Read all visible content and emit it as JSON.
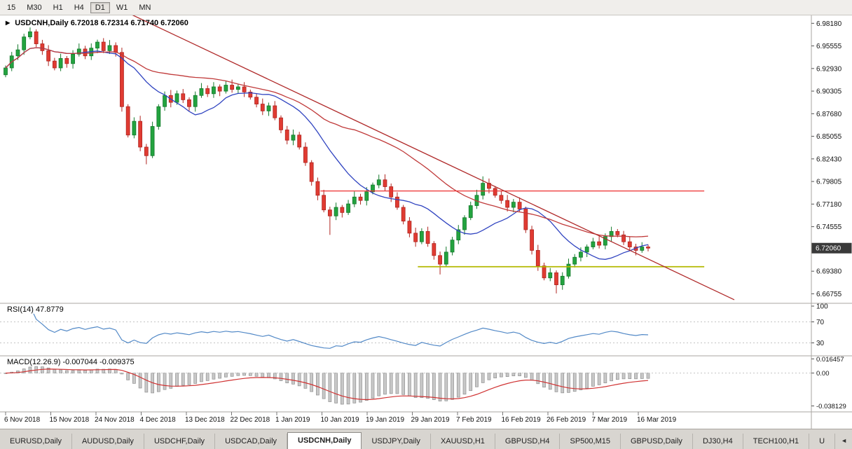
{
  "toolbar": {
    "timeframes": [
      {
        "label": "15",
        "active": false
      },
      {
        "label": "M30",
        "active": false
      },
      {
        "label": "H1",
        "active": false
      },
      {
        "label": "H4",
        "active": false
      },
      {
        "label": "D1",
        "active": true
      },
      {
        "label": "W1",
        "active": false
      },
      {
        "label": "MN",
        "active": false
      }
    ]
  },
  "chart": {
    "symbol_line": "USDCNH,Daily",
    "ohlc_line": "6.72018 6.72314 6.71740 6.72060"
  },
  "chart_data": {
    "type": "candlestick",
    "symbol": "USDCNH",
    "timeframe": "Daily",
    "open": 6.72018,
    "high": 6.72314,
    "low": 6.7174,
    "close": 6.7206,
    "price_max": 6.991,
    "price_min": 6.6565,
    "current_price": {
      "text": "6.72060",
      "value": 6.7206
    },
    "price_axis_labels": [
      "6.98180",
      "6.95555",
      "6.92930",
      "6.90305",
      "6.87680",
      "6.85055",
      "6.82430",
      "6.79805",
      "6.77180",
      "6.74555",
      "6.69380",
      "6.66755"
    ],
    "date_labels": [
      "6 Nov 2018",
      "15 Nov 2018",
      "24 Nov 2018",
      "4 Dec 2018",
      "13 Dec 2018",
      "22 Dec 2018",
      "1 Jan 2019",
      "10 Jan 2019",
      "19 Jan 2019",
      "29 Jan 2019",
      "7 Feb 2019",
      "16 Feb 2019",
      "26 Feb 2019",
      "7 Mar 2019",
      "16 Mar 2019"
    ],
    "closes": [
      6.93,
      6.944,
      6.951,
      6.966,
      6.972,
      6.958,
      6.95,
      6.938,
      6.93,
      6.941,
      6.935,
      6.946,
      6.952,
      6.944,
      6.953,
      6.96,
      6.95,
      6.956,
      6.948,
      6.885,
      6.852,
      6.868,
      6.838,
      6.828,
      6.862,
      6.885,
      6.898,
      6.89,
      6.9,
      6.893,
      6.885,
      6.898,
      6.906,
      6.9,
      6.908,
      6.903,
      6.91,
      6.905,
      6.908,
      6.902,
      6.896,
      6.888,
      6.88,
      6.886,
      6.872,
      6.858,
      6.846,
      6.852,
      6.838,
      6.82,
      6.798,
      6.782,
      6.765,
      6.758,
      6.768,
      6.762,
      6.772,
      6.78,
      6.776,
      6.786,
      6.794,
      6.8,
      6.792,
      6.78,
      6.768,
      6.752,
      6.738,
      6.728,
      6.74,
      6.726,
      6.712,
      6.702,
      6.716,
      6.73,
      6.742,
      6.756,
      6.77,
      6.782,
      6.796,
      6.79,
      6.782,
      6.776,
      6.768,
      6.774,
      6.766,
      6.742,
      6.718,
      6.7,
      6.686,
      6.692,
      6.678,
      6.688,
      6.702,
      6.71,
      6.716,
      6.722,
      6.728,
      6.724,
      6.734,
      6.74,
      6.736,
      6.728,
      6.722,
      6.718,
      6.722,
      6.7206
    ],
    "wick_high": {
      "4": 6.977,
      "61": 6.806,
      "78": 6.804
    },
    "wick_low": {
      "23": 6.818,
      "53": 6.736,
      "71": 6.69,
      "90": 6.668
    },
    "overlays": {
      "ma_fast_period": 13,
      "ma_slow_period": 34,
      "trendline": {
        "x1": 0.1295,
        "p1": 7.0065,
        "x2": 0.905,
        "p2": 6.6606
      },
      "resistance": {
        "price": 6.787,
        "x1": 0.395,
        "x2": 0.868
      },
      "support": {
        "price": 6.699,
        "x1": 0.515,
        "x2": 0.868
      }
    },
    "rsi": {
      "label": "RSI(14) 47.8779",
      "period": 14,
      "current": 47.8779,
      "levels": [
        {
          "text": "100",
          "value": 100,
          "dashed": false
        },
        {
          "text": "70",
          "value": 70,
          "dashed": true
        },
        {
          "text": "30",
          "value": 30,
          "dashed": true
        }
      ]
    },
    "macd": {
      "label": "MACD(12.26.9) -0.007044 -0.009375",
      "value": -0.007044,
      "signal": -0.009375,
      "axis_labels": [
        {
          "text": "0.016457",
          "value": 0.016457
        },
        {
          "text": "0.00",
          "value": 0
        },
        {
          "text": "-0.038129",
          "value": -0.038129
        }
      ]
    },
    "colors": {
      "bull": "#23a33f",
      "bull_stroke": "#157a2c",
      "bear": "#e03b32",
      "bear_stroke": "#b02520",
      "ma_fast": "#2f43c0",
      "ma_slow": "#c03a3a",
      "trend": "#b02a2a",
      "resistance": "#ee3030",
      "support": "#b3b800",
      "rsi": "#5289c7",
      "macd_bar": "#c8c8c8",
      "macd_bar_stroke": "#8f8f8f",
      "macd_signal": "#d03333",
      "price_box": "#3a3a3a"
    }
  },
  "tabbar": {
    "scroll_left_icon": "◄",
    "tabs": [
      {
        "label": "EURUSD,Daily",
        "active": false
      },
      {
        "label": "AUDUSD,Daily",
        "active": false
      },
      {
        "label": "USDCHF,Daily",
        "active": false
      },
      {
        "label": "USDCAD,Daily",
        "active": false
      },
      {
        "label": "USDCNH,Daily",
        "active": true
      },
      {
        "label": "USDJPY,Daily",
        "active": false
      },
      {
        "label": "XAUUSD,H1",
        "active": false
      },
      {
        "label": "GBPUSD,H4",
        "active": false
      },
      {
        "label": "SP500,M15",
        "active": false
      },
      {
        "label": "GBPUSD,Daily",
        "active": false
      },
      {
        "label": "DJ30,H4",
        "active": false
      },
      {
        "label": "TECH100,H1",
        "active": false
      },
      {
        "label": "U",
        "active": false
      }
    ]
  }
}
